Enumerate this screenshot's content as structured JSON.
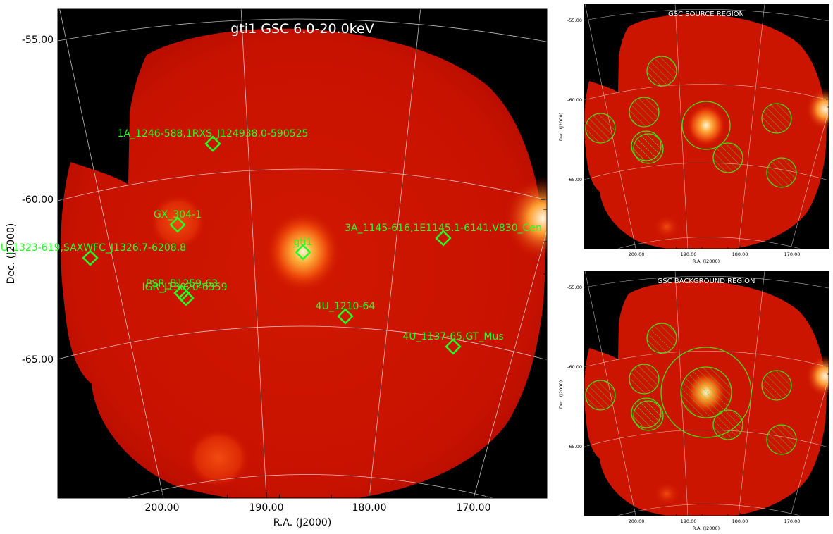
{
  "main": {
    "title": "gti1 GSC 6.0-20.0keV",
    "xlabel": "R.A. (J2000)",
    "ylabel": "Dec. (J2000)",
    "yticks": [
      "-55.00",
      "-60.00",
      "-65.00"
    ],
    "xticks": [
      "200.00",
      "190.00",
      "180.00",
      "170.00"
    ],
    "sources": [
      {
        "label": "1A_1246-588,1RXS_J124938.0-590525"
      },
      {
        "label": "GX_304-1"
      },
      {
        "label": "gti1"
      },
      {
        "label": "3A_1145-616,1E1145.1-6141,V830_Cen"
      },
      {
        "label": "4U_1323-619,SAXWFC_J1326.7-6208.8"
      },
      {
        "label": "PSR_B1259-63"
      },
      {
        "label": "IGR_J13020-6359"
      },
      {
        "label": "4U_1210-64"
      },
      {
        "label": "4U_1137-65,GT_Mus"
      }
    ]
  },
  "source_region": {
    "title": "GSC SOURCE REGION",
    "xlabel": "R.A. (J2000)",
    "ylabel": "Dec. (J2000)",
    "yticks": [
      "-55.00",
      "-60.00",
      "-65.00"
    ],
    "xticks": [
      "200.00",
      "190.00",
      "180.00",
      "170.00"
    ]
  },
  "background_region": {
    "title": "GSC BACKGROUND REGION",
    "xlabel": "R.A. (J2000)",
    "ylabel": "Dec. (J2000)",
    "yticks": [
      "-55.00",
      "-60.00",
      "-65.00"
    ],
    "xticks": [
      "200.00",
      "190.00",
      "180.00",
      "170.00"
    ]
  },
  "colors": {
    "map_base": "#cc1100",
    "map_outside": "#000000",
    "marker": "#22ff22",
    "region": "#44dd11",
    "grid": "#dddddd"
  }
}
